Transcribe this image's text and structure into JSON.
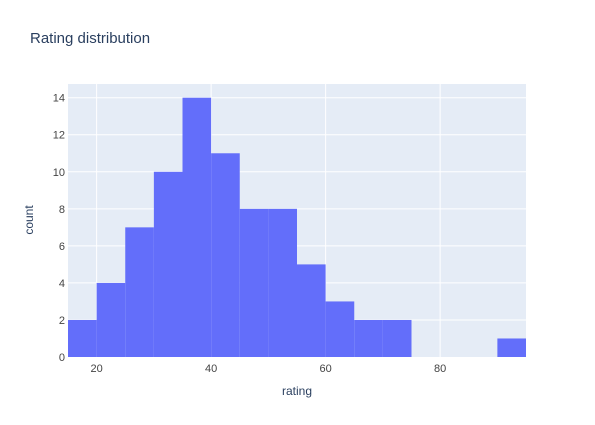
{
  "chart_data": {
    "type": "bar",
    "title": "Rating distribution",
    "xlabel": "rating",
    "ylabel": "count",
    "bin_width": 5,
    "bin_starts": [
      15,
      20,
      25,
      30,
      35,
      40,
      45,
      50,
      55,
      60,
      65,
      70,
      75,
      80,
      85,
      90
    ],
    "values": [
      2,
      4,
      7,
      10,
      14,
      11,
      8,
      8,
      5,
      3,
      2,
      2,
      0,
      0,
      0,
      1
    ],
    "xlim": [
      15,
      95
    ],
    "ylim": [
      0,
      14.74
    ],
    "xticks": [
      20,
      40,
      60,
      80
    ],
    "yticks": [
      0,
      2,
      4,
      6,
      8,
      10,
      12,
      14
    ],
    "grid": true,
    "legend": "none",
    "colors": {
      "bar": "#636efa",
      "plot_bg": "#e5ecf6",
      "grid": "#ffffff",
      "text": "#2a3f5f"
    }
  }
}
